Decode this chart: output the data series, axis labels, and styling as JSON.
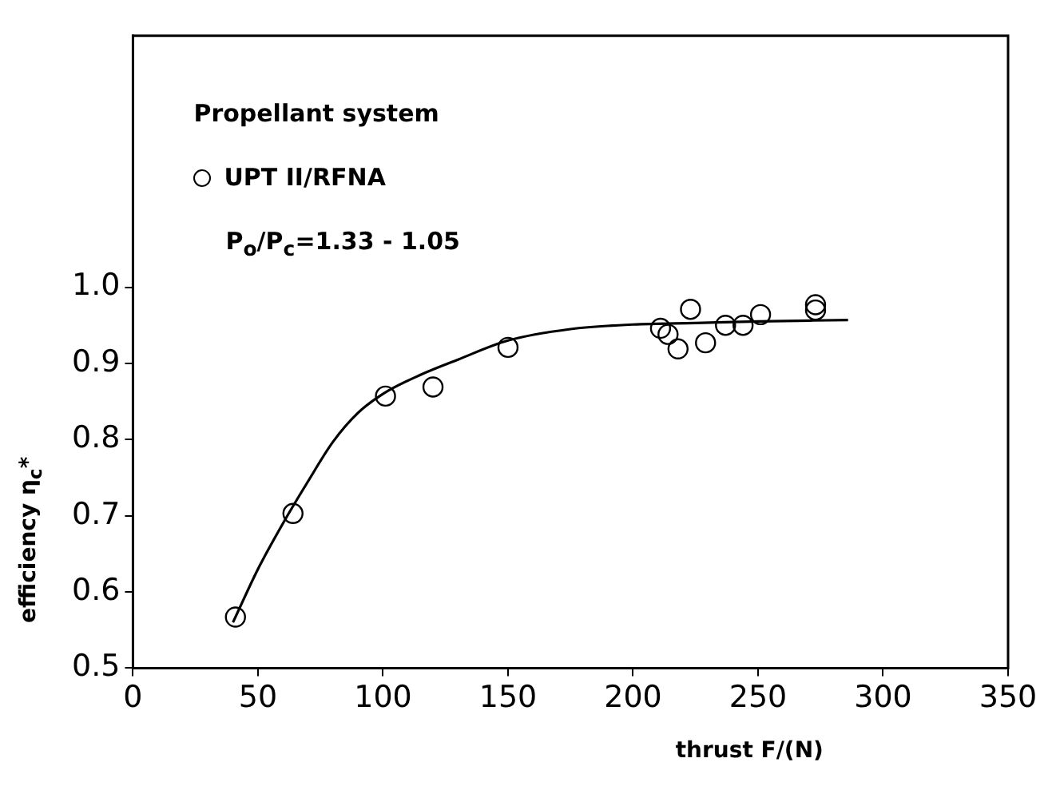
{
  "chart_data": {
    "type": "scatter",
    "xlabel": "thrust F/(N)",
    "ylabel": "efficiency η$_{c}$*",
    "legend_title": "Propellant system",
    "annotations": [
      "P$_{o}$/P$_{c}$=1.33 - 1.05"
    ],
    "xlim": [
      0,
      350
    ],
    "xticks": [
      0,
      50,
      100,
      150,
      200,
      250,
      300,
      350
    ],
    "ylim": [
      0.5,
      1.33
    ],
    "yticks": [
      0.5,
      0.6,
      0.7,
      0.8,
      0.9,
      {
        "value": 1,
        "label": "1.0"
      }
    ],
    "legend": "top left",
    "marker": "circle",
    "series": [
      {
        "name": "UPT II/RFNA",
        "color": "#000000",
        "x": [
          41,
          64,
          101,
          120,
          150,
          211,
          214,
          218,
          223,
          229,
          237,
          244,
          251,
          273,
          273
        ],
        "values": [
          0.567,
          0.703,
          0.857,
          0.869,
          0.921,
          0.946,
          0.938,
          0.919,
          0.971,
          0.927,
          0.95,
          0.95,
          0.964,
          0.977,
          0.97
        ]
      },
      {
        "type": "line",
        "color": "#000000",
        "marker": "none",
        "x": [
          40,
          50,
          60,
          70,
          80,
          90,
          100,
          115,
          130,
          150,
          175,
          200,
          225,
          250,
          286
        ],
        "values": [
          0.56,
          0.63,
          0.69,
          0.745,
          0.797,
          0.835,
          0.86,
          0.885,
          0.905,
          0.93,
          0.945,
          0.951,
          0.953,
          0.955,
          0.957
        ]
      }
    ]
  }
}
